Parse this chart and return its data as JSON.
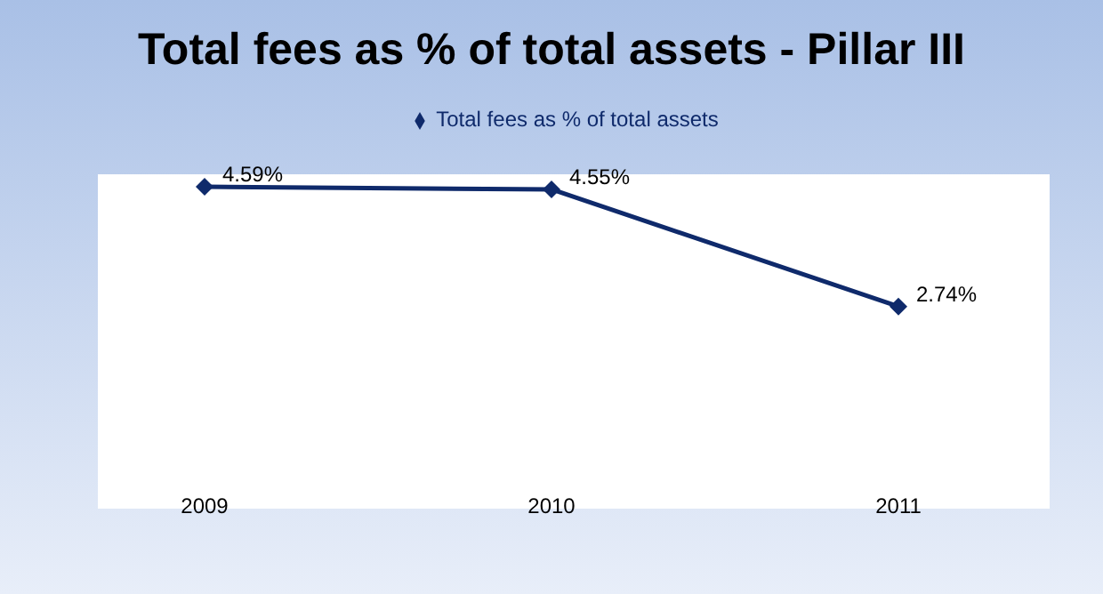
{
  "chart_data": {
    "type": "line",
    "title": "Total fees as % of total assets - Pillar III",
    "categories": [
      "2009",
      "2010",
      "2011"
    ],
    "series": [
      {
        "name": "Total fees as % of total assets",
        "color": "#0f2a6b",
        "values": [
          4.59,
          4.55,
          2.74
        ],
        "value_labels": [
          "4.59%",
          "4.55%",
          "2.74%"
        ]
      }
    ],
    "marker": "diamond",
    "legend": "top"
  }
}
